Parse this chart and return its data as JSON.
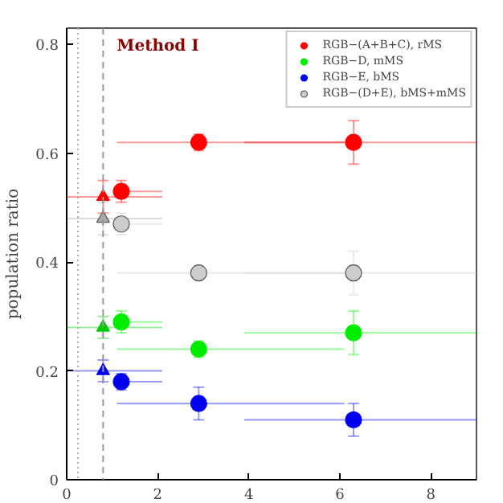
{
  "chart_data": {
    "type": "scatter",
    "ylabel": "population ratio",
    "xlim": [
      0,
      9
    ],
    "ylim": [
      0,
      0.83
    ],
    "xticks": [
      0,
      2,
      4,
      6,
      8
    ],
    "yticks": [
      0,
      0.2,
      0.4,
      0.6,
      0.8
    ],
    "grid": false,
    "legend": "top right",
    "annotations": [
      "Method I"
    ],
    "ref_lines": [
      {
        "axis": "x",
        "value": 0.8,
        "label": null,
        "color": "#999999",
        "line_style": "dashed"
      },
      {
        "axis": "x",
        "value": 0.25,
        "label": null,
        "color": "#aaaaaa",
        "line_style": "dotted"
      }
    ],
    "series": [
      {
        "color": "#ff0000",
        "marker": "triangle",
        "x": [
          0.8
        ],
        "values": [
          0.52
        ],
        "errors": [
          0.03
        ],
        "xerrors": [
          [
            0,
            2.1
          ]
        ]
      },
      {
        "color": "#00cc00",
        "marker": "triangle",
        "x": [
          0.8
        ],
        "values": [
          0.28
        ],
        "errors": [
          0.02
        ],
        "xerrors": [
          [
            0,
            2.1
          ]
        ]
      },
      {
        "color": "#0000ee",
        "marker": "triangle",
        "x": [
          0.8
        ],
        "values": [
          0.2
        ],
        "errors": [
          0.02
        ],
        "xerrors": [
          [
            0,
            2.1
          ]
        ]
      },
      {
        "color": "#aaaaaa",
        "marker": "triangle",
        "x": [
          0.8
        ],
        "values": [
          0.48
        ],
        "errors": [
          0.03
        ],
        "xerrors": [
          [
            0,
            2.1
          ]
        ]
      },
      {
        "name": "RGB−(A+B+C), rMS",
        "color": "#ff0000",
        "marker": "circle",
        "x": [
          1.2,
          2.9,
          6.3
        ],
        "values": [
          0.53,
          0.62,
          0.62
        ],
        "errors": [
          0.02,
          0.015,
          0.04
        ],
        "xerrors": [
          [
            1.1,
            2.1
          ],
          [
            1.1,
            6.1
          ],
          [
            3.9,
            9
          ]
        ]
      },
      {
        "name": "RGB−D, mMS",
        "color": "#00ee00",
        "marker": "circle",
        "x": [
          1.2,
          2.9,
          6.3
        ],
        "values": [
          0.29,
          0.24,
          0.27
        ],
        "errors": [
          0.02,
          0.015,
          0.04
        ],
        "xerrors": [
          [
            1.1,
            2.1
          ],
          [
            1.1,
            6.1
          ],
          [
            3.9,
            9
          ]
        ]
      },
      {
        "name": "RGB−E, bMS",
        "color": "#0000ee",
        "marker": "circle",
        "x": [
          1.2,
          2.9,
          6.3
        ],
        "values": [
          0.18,
          0.14,
          0.11
        ],
        "errors": [
          0.015,
          0.03,
          0.03
        ],
        "xerrors": [
          [
            1.1,
            2.1
          ],
          [
            1.1,
            6.1
          ],
          [
            3.9,
            9
          ]
        ]
      },
      {
        "name": "RGB−(D+E), bMS+mMS",
        "color": "#cccccc",
        "marker": "circle",
        "x": [
          1.2,
          2.9,
          6.3
        ],
        "values": [
          0.47,
          0.38,
          0.38
        ],
        "errors": [
          0.02,
          0.01,
          0.04
        ],
        "xerrors": [
          [
            1.1,
            2.1
          ],
          [
            1.1,
            6.1
          ],
          [
            3.9,
            9
          ]
        ]
      }
    ]
  }
}
